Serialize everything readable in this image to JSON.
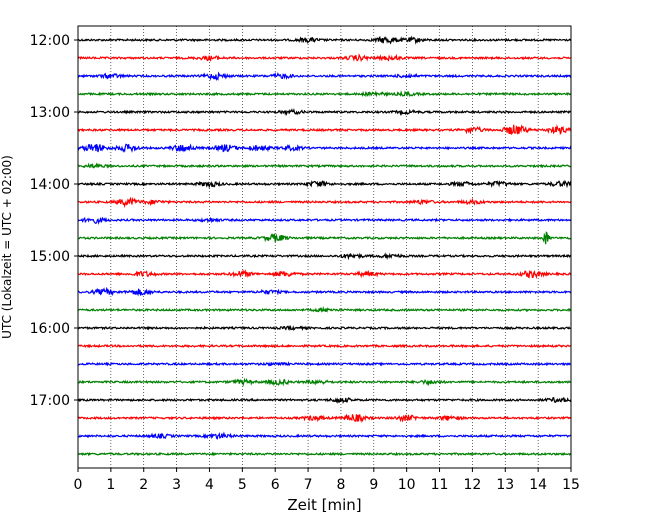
{
  "chart_data": {
    "type": "line",
    "title": "",
    "xlabel": "Zeit  [min]",
    "ylabel": "UTC (Lokalzeit = UTC + 02:00)",
    "xlim": [
      0,
      15
    ],
    "x_ticks": [
      0,
      1,
      2,
      3,
      4,
      5,
      6,
      7,
      8,
      9,
      10,
      11,
      12,
      13,
      14,
      15
    ],
    "y_tick_labels": [
      "12:00",
      "13:00",
      "14:00",
      "15:00",
      "16:00",
      "17:00"
    ],
    "grid": "vertical-dotted",
    "colors": {
      "black": "#000000",
      "red": "#ff0000",
      "blue": "#0000ff",
      "green": "#008000"
    },
    "traces": [
      {
        "start": "12:00",
        "color": "black",
        "events": [
          [
            7,
            0.6
          ],
          [
            9.4,
            1.0
          ],
          [
            10.2,
            0.6
          ]
        ]
      },
      {
        "start": "12:15",
        "color": "red",
        "events": [
          [
            4,
            0.6
          ],
          [
            8.5,
            0.7
          ],
          [
            9.5,
            0.6
          ]
        ]
      },
      {
        "start": "12:30",
        "color": "blue",
        "events": [
          [
            1,
            0.6
          ],
          [
            4.2,
            0.9
          ],
          [
            6.2,
            0.6
          ],
          [
            10,
            0.4
          ]
        ]
      },
      {
        "start": "12:45",
        "color": "green",
        "events": [
          [
            9,
            0.5
          ],
          [
            10,
            0.4
          ]
        ]
      },
      {
        "start": "13:00",
        "color": "black",
        "events": [
          [
            6.5,
            0.5
          ],
          [
            10,
            0.4
          ]
        ]
      },
      {
        "start": "13:15",
        "color": "red",
        "events": [
          [
            12,
            0.8
          ],
          [
            13.3,
            1.6
          ],
          [
            14.6,
            1.0
          ]
        ]
      },
      {
        "start": "13:30",
        "color": "blue",
        "events": [
          [
            0.5,
            1.3
          ],
          [
            1.5,
            1.0
          ],
          [
            3.2,
            1.1
          ],
          [
            4.5,
            1.0
          ],
          [
            5.5,
            0.8
          ],
          [
            6.5,
            0.6
          ]
        ]
      },
      {
        "start": "13:45",
        "color": "green",
        "events": [
          [
            0.5,
            0.4
          ]
        ]
      },
      {
        "start": "14:00",
        "color": "black",
        "events": [
          [
            4,
            0.7
          ],
          [
            7.3,
            0.8
          ],
          [
            11.7,
            0.6
          ],
          [
            12.8,
            0.6
          ],
          [
            14.7,
            0.7
          ]
        ]
      },
      {
        "start": "14:15",
        "color": "red",
        "events": [
          [
            1.5,
            1.1
          ],
          [
            2.3,
            0.5
          ],
          [
            10.5,
            0.5
          ],
          [
            12,
            0.5
          ]
        ]
      },
      {
        "start": "14:30",
        "color": "blue",
        "events": [
          [
            0.5,
            0.8
          ],
          [
            4,
            0.4
          ]
        ]
      },
      {
        "start": "14:45",
        "color": "green",
        "events": [
          [
            6,
            1.1
          ],
          [
            14.25,
            2.6
          ]
        ]
      },
      {
        "start": "15:00",
        "color": "black",
        "events": [
          [
            8.3,
            0.6
          ],
          [
            9.5,
            0.5
          ]
        ]
      },
      {
        "start": "15:15",
        "color": "red",
        "events": [
          [
            2,
            0.7
          ],
          [
            5,
            0.8
          ],
          [
            6.3,
            0.7
          ],
          [
            8.8,
            0.6
          ],
          [
            13.8,
            1.0
          ]
        ]
      },
      {
        "start": "15:30",
        "color": "blue",
        "events": [
          [
            0.8,
            0.8
          ],
          [
            1.9,
            0.9
          ],
          [
            5.8,
            0.5
          ]
        ]
      },
      {
        "start": "15:45",
        "color": "green",
        "events": [
          [
            7.5,
            0.4
          ]
        ]
      },
      {
        "start": "16:00",
        "color": "black",
        "events": [
          [
            6.5,
            0.3
          ]
        ]
      },
      {
        "start": "16:15",
        "color": "red",
        "events": []
      },
      {
        "start": "16:30",
        "color": "blue",
        "events": [
          [
            6,
            0.3
          ]
        ]
      },
      {
        "start": "16:45",
        "color": "green",
        "events": [
          [
            5,
            0.6
          ],
          [
            6.1,
            0.7
          ],
          [
            7.3,
            0.5
          ],
          [
            10.7,
            0.5
          ]
        ]
      },
      {
        "start": "17:00",
        "color": "black",
        "events": [
          [
            8,
            0.6
          ],
          [
            14.6,
            0.6
          ]
        ]
      },
      {
        "start": "17:15",
        "color": "red",
        "events": [
          [
            7.2,
            0.6
          ],
          [
            8.4,
            1.1
          ],
          [
            10,
            0.8
          ],
          [
            11.3,
            0.6
          ]
        ]
      },
      {
        "start": "17:30",
        "color": "blue",
        "events": [
          [
            2.5,
            0.5
          ],
          [
            4.3,
            0.7
          ]
        ]
      },
      {
        "start": "17:45",
        "color": "green",
        "events": []
      }
    ]
  }
}
